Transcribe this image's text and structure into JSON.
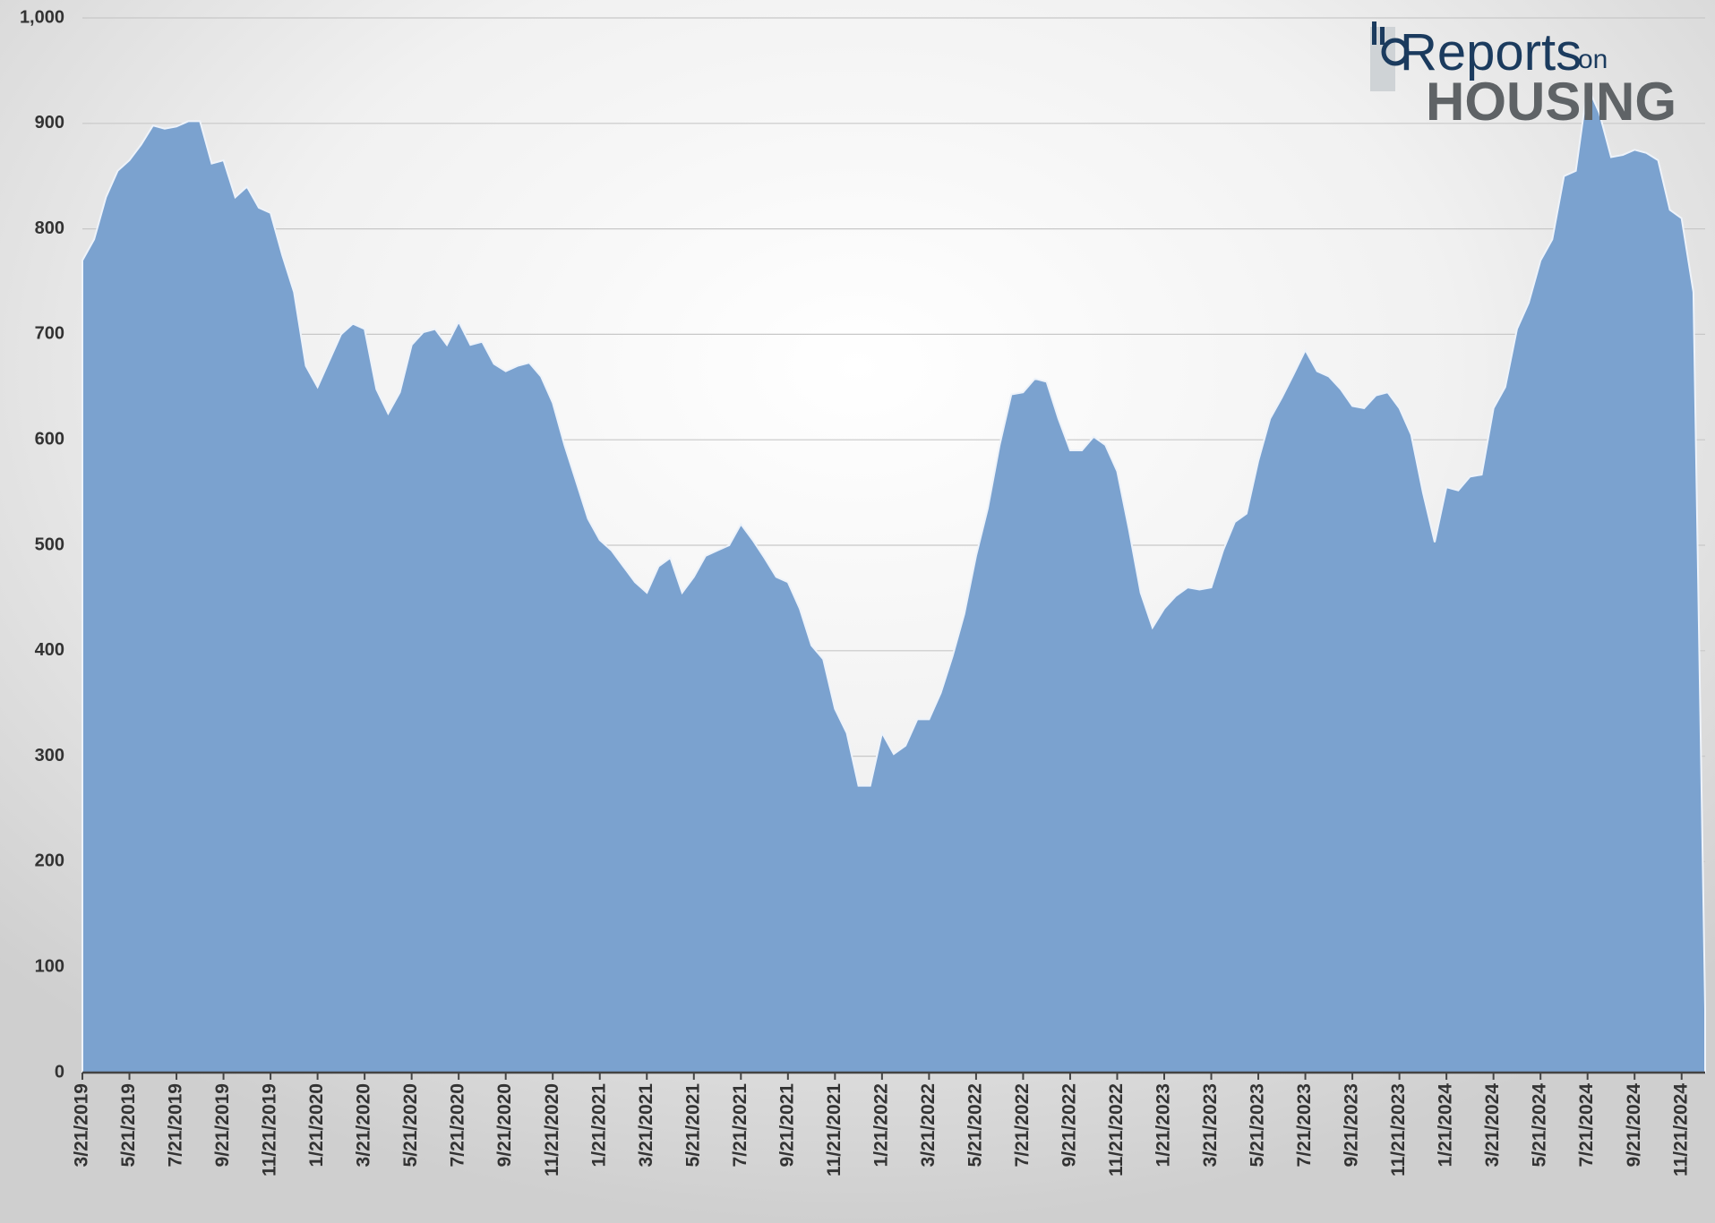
{
  "chart_data": {
    "type": "area",
    "logo": {
      "line1": "Reports",
      "line1b": "on",
      "line2": "HOUSING"
    },
    "color": "#7ba2cf",
    "ylim": [
      0,
      1000
    ],
    "yticks": [
      0,
      100,
      200,
      300,
      400,
      500,
      600,
      700,
      800,
      900,
      {
        "value": 1000,
        "label": "1,000"
      }
    ],
    "grid": true,
    "categories": [
      "3/21/2019",
      null,
      null,
      null,
      "5/21/2019",
      null,
      null,
      null,
      "7/21/2019",
      null,
      null,
      null,
      "9/21/2019",
      null,
      null,
      null,
      "11/21/2019",
      null,
      null,
      null,
      "1/21/2020",
      null,
      null,
      null,
      "3/21/2020",
      null,
      null,
      null,
      "5/21/2020",
      null,
      null,
      null,
      "7/21/2020",
      null,
      null,
      null,
      "9/21/2020",
      null,
      null,
      null,
      "11/21/2020",
      null,
      null,
      null,
      "1/21/2021",
      null,
      null,
      null,
      "3/21/2021",
      null,
      null,
      null,
      "5/21/2021",
      null,
      null,
      null,
      "7/21/2021",
      null,
      null,
      null,
      "9/21/2021",
      null,
      null,
      null,
      "11/21/2021",
      null,
      null,
      null,
      "1/21/2022",
      null,
      null,
      null,
      "3/21/2022",
      null,
      null,
      null,
      "5/21/2022",
      null,
      null,
      null,
      "7/21/2022",
      null,
      null,
      null,
      "9/21/2022",
      null,
      null,
      null,
      "11/21/2022",
      null,
      null,
      null,
      "1/21/2023",
      null,
      null,
      null,
      "3/21/2023",
      null,
      null,
      null,
      "5/21/2023",
      null,
      null,
      null,
      "7/21/2023",
      null,
      null,
      null,
      "9/21/2023",
      null,
      null,
      null,
      "11/21/2023",
      null,
      null,
      null,
      "1/21/2024",
      null,
      null,
      null,
      "3/21/2024",
      null,
      null,
      null,
      "5/21/2024",
      null,
      null,
      null,
      "7/21/2024",
      null,
      null,
      null,
      "9/21/2024",
      null,
      null,
      null,
      "11/21/2024",
      null,
      null
    ],
    "values": [
      770,
      790,
      830,
      855,
      865,
      880,
      898,
      895,
      897,
      902,
      902,
      862,
      865,
      830,
      840,
      820,
      815,
      775,
      740,
      670,
      650,
      675,
      700,
      710,
      705,
      648,
      625,
      645,
      690,
      702,
      705,
      690,
      712,
      690,
      693,
      672,
      665,
      670,
      673,
      660,
      635,
      595,
      560,
      525,
      505,
      495,
      480,
      465,
      455,
      480,
      488,
      455,
      470,
      490,
      495,
      500,
      520,
      505,
      488,
      470,
      465,
      440,
      405,
      392,
      345,
      322,
      272,
      272,
      322,
      302,
      310,
      335,
      335,
      360,
      395,
      435,
      490,
      535,
      595,
      643,
      645,
      658,
      655,
      620,
      590,
      590,
      603,
      595,
      570,
      515,
      455,
      422,
      440,
      452,
      460,
      458,
      460,
      495,
      522,
      530,
      580,
      620,
      640,
      662,
      685,
      665,
      660,
      648,
      632,
      630,
      642,
      645,
      630,
      605,
      550,
      503,
      555,
      552,
      565,
      567,
      630,
      650,
      705,
      730,
      770,
      790,
      850,
      855,
      935,
      910,
      868,
      870,
      875,
      872,
      865,
      818,
      810,
      740,
      60
    ]
  }
}
